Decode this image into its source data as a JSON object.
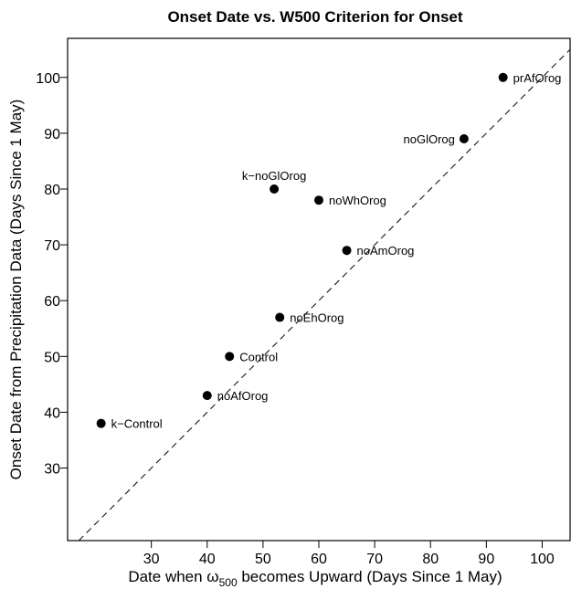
{
  "chart_data": {
    "type": "scatter",
    "title": "Onset Date vs. W500 Criterion for Onset",
    "xlabel": {
      "prefix": "Date when ω",
      "subscript": "500",
      "suffix": " becomes Upward (Days Since 1 May)"
    },
    "ylabel": "Onset Date from Precipitation Data (Days Since 1 May)",
    "xlim": [
      15,
      105
    ],
    "ylim": [
      17,
      107
    ],
    "xticks": [
      30,
      40,
      50,
      60,
      70,
      80,
      90,
      100
    ],
    "yticks": [
      30,
      40,
      50,
      60,
      70,
      80,
      90,
      100
    ],
    "grid": false,
    "reference_line": "dashed 1:1 line",
    "points": [
      {
        "label": "k−Control",
        "x": 21,
        "y": 38,
        "label_pos": "right"
      },
      {
        "label": "noAfOrog",
        "x": 40,
        "y": 43,
        "label_pos": "right"
      },
      {
        "label": "Control",
        "x": 44,
        "y": 50,
        "label_pos": "right"
      },
      {
        "label": "noEhOrog",
        "x": 53,
        "y": 57,
        "label_pos": "right"
      },
      {
        "label": "noAmOrog",
        "x": 65,
        "y": 69,
        "label_pos": "right"
      },
      {
        "label": "noWhOrog",
        "x": 60,
        "y": 78,
        "label_pos": "right"
      },
      {
        "label": "k−noGlOrog",
        "x": 52,
        "y": 80,
        "label_pos": "above"
      },
      {
        "label": "noGlOrog",
        "x": 86,
        "y": 89,
        "label_pos": "left"
      },
      {
        "label": "prAfOrog",
        "x": 93,
        "y": 100,
        "label_pos": "right"
      }
    ]
  }
}
